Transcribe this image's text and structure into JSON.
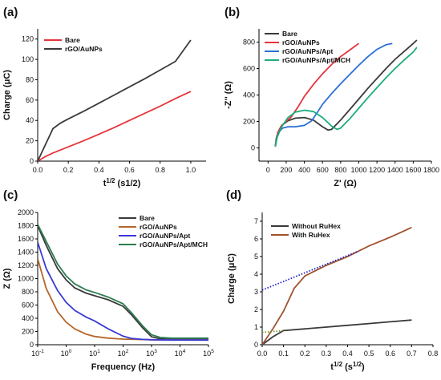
{
  "chart_data": [
    {
      "panel": "(a)",
      "type": "line",
      "xlabel": "t",
      "xlabel_sup": "1/2",
      "xlabel_unit": " (s1/2)",
      "ylabel": "Charge (μC)",
      "xlim": [
        0,
        1.1
      ],
      "ylim": [
        0,
        130
      ],
      "xticks": [
        0.0,
        0.2,
        0.4,
        0.6,
        0.8,
        1.0
      ],
      "xtick_labels": [
        "0.0",
        "0.2",
        "0.4",
        "0.6",
        "0.8",
        "1.0"
      ],
      "yticks": [
        0,
        20,
        40,
        60,
        80,
        100,
        120
      ],
      "ytick_labels": [
        "0",
        "20",
        "40",
        "60",
        "80",
        "100",
        "120"
      ],
      "legend_position": "top-left",
      "series": [
        {
          "name": "Bare",
          "color": "#e8333b",
          "x": [
            0,
            0.05,
            0.1,
            0.2,
            0.3,
            0.4,
            0.5,
            0.6,
            0.7,
            0.8,
            0.9,
            1.0
          ],
          "y": [
            0,
            4.5,
            8,
            14,
            20,
            26.5,
            33,
            40,
            47,
            54,
            61.5,
            68.5
          ]
        },
        {
          "name": "rGO/AuNPs",
          "color": "#3a3a3a",
          "x": [
            0,
            0.05,
            0.1,
            0.15,
            0.2,
            0.3,
            0.4,
            0.5,
            0.6,
            0.7,
            0.8,
            0.9,
            1.0
          ],
          "y": [
            0,
            16,
            32,
            37.5,
            41.5,
            49,
            57,
            65,
            73,
            81,
            89.5,
            98,
            119
          ]
        }
      ]
    },
    {
      "panel": "(b)",
      "type": "line",
      "xlabel": "Z' (Ω)",
      "ylabel": "-Z'' (Ω)",
      "xlim": [
        -100,
        1800
      ],
      "ylim": [
        -100,
        900
      ],
      "xticks": [
        0,
        200,
        400,
        600,
        800,
        1000,
        1200,
        1400,
        1600,
        1800
      ],
      "xtick_labels": [
        "0",
        "200",
        "400",
        "600",
        "800",
        "1000",
        "1200",
        "1400",
        "1600",
        "1800"
      ],
      "yticks": [
        0,
        200,
        400,
        600,
        800
      ],
      "ytick_labels": [
        "0",
        "200",
        "400",
        "600",
        "800"
      ],
      "legend_position": "top-left",
      "series": [
        {
          "name": "Bare",
          "color": "#3a3a3a",
          "x": [
            80,
            90,
            110,
            150,
            220,
            300,
            400,
            500,
            600,
            660,
            700,
            800,
            900,
            1000,
            1100,
            1200,
            1300,
            1400,
            1500,
            1600,
            1640
          ],
          "y": [
            15,
            70,
            120,
            170,
            205,
            225,
            230,
            210,
            160,
            135,
            140,
            210,
            290,
            370,
            450,
            525,
            600,
            670,
            730,
            790,
            815
          ]
        },
        {
          "name": "rGO/AuNPs",
          "color": "#e8333b",
          "x": [
            80,
            90,
            110,
            140,
            180,
            250,
            330,
            400,
            500,
            600,
            700,
            800,
            900,
            1000
          ],
          "y": [
            10,
            60,
            120,
            160,
            190,
            230,
            310,
            390,
            480,
            560,
            630,
            690,
            740,
            790
          ]
        },
        {
          "name": "rGO/AuNPs/Apt",
          "color": "#2a6fd6",
          "x": [
            80,
            95,
            120,
            160,
            220,
            300,
            400,
            480,
            540,
            600,
            700,
            800,
            900,
            1000,
            1100,
            1200,
            1300,
            1370
          ],
          "y": [
            10,
            70,
            120,
            150,
            160,
            160,
            170,
            205,
            265,
            330,
            410,
            485,
            555,
            625,
            690,
            745,
            780,
            790
          ]
        },
        {
          "name": "rGO/AuNPs/Apt/MCH",
          "color": "#1aae7a",
          "x": [
            80,
            100,
            150,
            220,
            300,
            400,
            500,
            600,
            700,
            760,
            800,
            900,
            1000,
            1100,
            1200,
            1300,
            1400,
            1500,
            1600,
            1640
          ],
          "y": [
            10,
            80,
            160,
            230,
            270,
            285,
            275,
            230,
            165,
            140,
            150,
            220,
            300,
            380,
            455,
            530,
            600,
            665,
            725,
            760
          ]
        }
      ]
    },
    {
      "panel": "(c)",
      "type": "line",
      "xscale": "log",
      "xlabel": "Frequency (Hz)",
      "ylabel": "Z (Ω)",
      "xlim": [
        0.1,
        100000
      ],
      "ylim": [
        0,
        2000
      ],
      "xticks": [
        0.1,
        1,
        10,
        100,
        1000,
        10000,
        100000
      ],
      "xtick_labels": [
        "10",
        "10",
        "10",
        "10",
        "10",
        "10",
        "10"
      ],
      "xtick_exponents": [
        "-1",
        "0",
        "1",
        "2",
        "3",
        "4",
        "5"
      ],
      "yticks": [
        0,
        200,
        400,
        600,
        800,
        1000,
        1200,
        1400,
        1600,
        1800,
        2000
      ],
      "ytick_labels": [
        "0",
        "200",
        "400",
        "600",
        "800",
        "1000",
        "1200",
        "1400",
        "1600",
        "1800",
        "2000"
      ],
      "legend_position": "top-right",
      "series": [
        {
          "name": "Bare",
          "color": "#3a3a3a",
          "x": [
            0.1,
            0.2,
            0.5,
            1,
            2,
            5,
            10,
            30,
            100,
            200,
            500,
            1000,
            2000,
            5000,
            10000,
            100000
          ],
          "y": [
            1800,
            1500,
            1150,
            980,
            860,
            780,
            740,
            680,
            580,
            450,
            250,
            120,
            90,
            80,
            80,
            80
          ]
        },
        {
          "name": "rGO/AuNPs",
          "color": "#b5652a",
          "x": [
            0.1,
            0.2,
            0.5,
            1,
            2,
            5,
            10,
            30,
            100,
            1000,
            10000,
            100000
          ],
          "y": [
            1300,
            850,
            500,
            340,
            240,
            160,
            125,
            100,
            85,
            75,
            72,
            70
          ]
        },
        {
          "name": "rGO/AuNPs/Apt",
          "color": "#3b3bd6",
          "x": [
            0.1,
            0.2,
            0.5,
            1,
            2,
            5,
            10,
            30,
            100,
            200,
            500,
            1000,
            10000,
            100000
          ],
          "y": [
            1550,
            1150,
            820,
            640,
            520,
            420,
            360,
            240,
            130,
            95,
            80,
            75,
            70,
            70
          ]
        },
        {
          "name": "rGO/AuNPs/Apt/MCH",
          "color": "#2e7d52",
          "x": [
            0.1,
            0.2,
            0.5,
            1,
            2,
            5,
            10,
            30,
            100,
            200,
            500,
            1000,
            2000,
            5000,
            10000,
            100000
          ],
          "y": [
            1820,
            1560,
            1220,
            1040,
            920,
            830,
            790,
            720,
            620,
            480,
            280,
            150,
            110,
            100,
            100,
            100
          ]
        }
      ]
    },
    {
      "panel": "(d)",
      "type": "line",
      "xlabel": "t",
      "xlabel_sup": "1/2",
      "xlabel_unit_open": " (s",
      "xlabel_unit_sup": "1/2",
      "xlabel_unit_close": ")",
      "ylabel": "Charge (μC)",
      "xlim": [
        0,
        0.8
      ],
      "ylim": [
        0,
        7.5
      ],
      "xticks": [
        0.0,
        0.1,
        0.2,
        0.3,
        0.4,
        0.5,
        0.6,
        0.7,
        0.8
      ],
      "xtick_labels": [
        "0.0",
        "0.1",
        "0.2",
        "0.3",
        "0.4",
        "0.5",
        "0.6",
        "0.7",
        "0.8"
      ],
      "yticks": [
        0,
        1,
        2,
        3,
        4,
        5,
        6,
        7
      ],
      "ytick_labels": [
        "0",
        "1",
        "2",
        "3",
        "4",
        "5",
        "6",
        "7"
      ],
      "legend_position": "top-left",
      "series": [
        {
          "name": "Without RuHex",
          "color": "#3a3a3a",
          "x": [
            0,
            0.05,
            0.1,
            0.2,
            0.3,
            0.4,
            0.5,
            0.6,
            0.7
          ],
          "y": [
            0,
            0.45,
            0.8,
            0.9,
            1.0,
            1.1,
            1.2,
            1.3,
            1.4
          ]
        },
        {
          "name": "With RuHex",
          "color": "#a0522d",
          "x": [
            0,
            0.05,
            0.1,
            0.15,
            0.2,
            0.25,
            0.3,
            0.4,
            0.5,
            0.6,
            0.7
          ],
          "y": [
            0,
            0.9,
            1.9,
            3.2,
            3.9,
            4.2,
            4.5,
            5.0,
            5.6,
            6.1,
            6.65
          ]
        }
      ],
      "fit_lines": [
        {
          "color": "#1f22c8",
          "x": [
            0,
            0.45
          ],
          "y": [
            3.1,
            5.3
          ]
        },
        {
          "color": "#6b8e23",
          "x": [
            0,
            0.1
          ],
          "y": [
            0.7,
            0.8
          ]
        }
      ]
    }
  ]
}
